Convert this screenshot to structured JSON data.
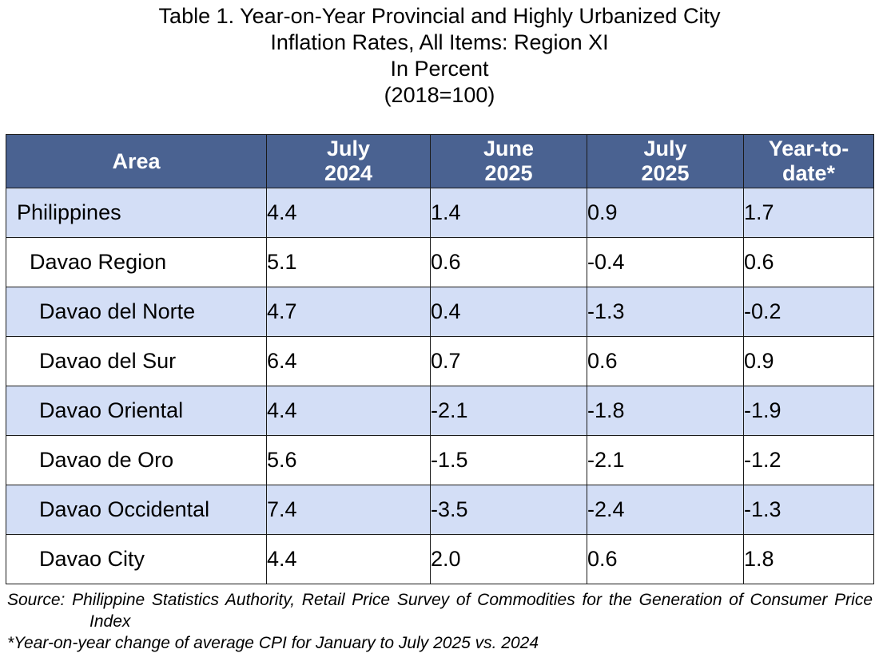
{
  "title": {
    "line1": "Table 1. Year-on-Year Provincial and Highly Urbanized City",
    "line2": "Inflation Rates, All Items: Region XI",
    "line3": "In Percent",
    "line4": "(2018=100)"
  },
  "headers": {
    "area": "Area",
    "col1": [
      "July",
      "2024"
    ],
    "col2": [
      "June",
      "2025"
    ],
    "col3": [
      "July",
      "2025"
    ],
    "col4": [
      "Year-to-",
      "date*"
    ]
  },
  "rows": [
    {
      "area": "Philippines",
      "v1": "4.4",
      "v2": "1.4",
      "v3": "0.9",
      "v4": "1.7"
    },
    {
      "area": "Davao Region",
      "v1": "5.1",
      "v2": "0.6",
      "v3": "-0.4",
      "v4": "0.6"
    },
    {
      "area": "Davao del Norte",
      "v1": "4.7",
      "v2": "0.4",
      "v3": "-1.3",
      "v4": "-0.2"
    },
    {
      "area": "Davao del Sur",
      "v1": "6.4",
      "v2": "0.7",
      "v3": "0.6",
      "v4": "0.9"
    },
    {
      "area": "Davao Oriental",
      "v1": "4.4",
      "v2": "-2.1",
      "v3": "-1.8",
      "v4": "-1.9"
    },
    {
      "area": "Davao de Oro",
      "v1": "5.6",
      "v2": "-1.5",
      "v3": "-2.1",
      "v4": "-1.2"
    },
    {
      "area": "Davao Occidental",
      "v1": "7.4",
      "v2": "-3.5",
      "v3": "-2.4",
      "v4": "-1.3"
    },
    {
      "area": "Davao City",
      "v1": "4.4",
      "v2": "2.0",
      "v3": "0.6",
      "v4": "1.8"
    }
  ],
  "footnotes": {
    "source": "Source: Philippine Statistics Authority, Retail Price Survey of Commodities for the Generation of Consumer Price Index",
    "note": "*Year-on-year change of average CPI for January to July 2025 vs. 2024"
  },
  "colors": {
    "header_bg": "#4a6291",
    "header_text": "#ffffff",
    "shaded_row": "#d3def6",
    "plain_row": "#ffffff"
  }
}
